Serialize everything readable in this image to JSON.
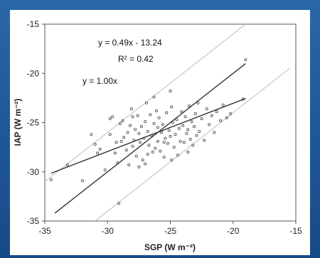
{
  "chart_data": {
    "type": "scatter",
    "title": "",
    "xlabel": "SGP (W m⁻²)",
    "ylabel": "IAP (W m⁻²)",
    "xlim": [
      -35,
      -15
    ],
    "ylim": [
      -35,
      -15
    ],
    "x_ticks": [
      -35,
      -30,
      -25,
      -20,
      -15
    ],
    "y_ticks": [
      -35,
      -30,
      -25,
      -20,
      -15
    ],
    "x_tick_labels": [
      "-35",
      "-30",
      "-25",
      "-20",
      "-15"
    ],
    "y_tick_labels": [
      "-35",
      "-30",
      "-25",
      "-20",
      "-15"
    ],
    "grid": false,
    "annotations": {
      "regression_equation": "y = 0.49x - 13.24",
      "r_squared": "R² = 0.42",
      "identity_line": "y = 1.00x"
    },
    "lines": [
      {
        "name": "y = 0.49x - 13.24",
        "slope": 0.49,
        "intercept": -13.24,
        "x_range": [
          -34.5,
          -19
        ],
        "color": "#333333"
      },
      {
        "name": "y = 1.00x",
        "slope": 1.0,
        "intercept": 0,
        "x_range": [
          -34.2,
          -19
        ],
        "color": "#333333"
      },
      {
        "slope": 1.0,
        "intercept": 4,
        "x_range": [
          -35,
          -19
        ],
        "color": "#c8c8c8"
      },
      {
        "slope": 1.0,
        "intercept": -4,
        "x_range": [
          -31,
          -15.5
        ],
        "color": "#c8c8c8"
      }
    ],
    "points": [
      [
        -34.5,
        -30.8
      ],
      [
        -33.2,
        -29.3
      ],
      [
        -31.3,
        -26.2
      ],
      [
        -31.0,
        -27.2
      ],
      [
        -30.8,
        -28.1
      ],
      [
        -30.6,
        -27.7
      ],
      [
        -29.8,
        -24.6
      ],
      [
        -29.8,
        -26.2
      ],
      [
        -29.4,
        -28.1
      ],
      [
        -29.3,
        -27.0
      ],
      [
        -29.2,
        -29.1
      ],
      [
        -29.1,
        -33.2
      ],
      [
        -29.0,
        -25.1
      ],
      [
        -28.8,
        -24.8
      ],
      [
        -28.7,
        -26.5
      ],
      [
        -28.5,
        -27.8
      ],
      [
        -28.4,
        -26.0
      ],
      [
        -28.3,
        -29.3
      ],
      [
        -28.2,
        -25.3
      ],
      [
        -28.0,
        -27.4
      ],
      [
        -28.0,
        -24.4
      ],
      [
        -27.9,
        -26.8
      ],
      [
        -27.8,
        -25.7
      ],
      [
        -27.7,
        -28.4
      ],
      [
        -27.6,
        -24.3
      ],
      [
        -27.5,
        -26.1
      ],
      [
        -27.4,
        -27.0
      ],
      [
        -27.3,
        -25.4
      ],
      [
        -27.2,
        -28.8
      ],
      [
        -27.1,
        -26.6
      ],
      [
        -27.0,
        -24.9
      ],
      [
        -27.0,
        -29.2
      ],
      [
        -26.9,
        -23.0
      ],
      [
        -26.8,
        -25.9
      ],
      [
        -26.7,
        -27.3
      ],
      [
        -26.6,
        -24.2
      ],
      [
        -26.5,
        -26.3
      ],
      [
        -26.4,
        -28.0
      ],
      [
        -26.3,
        -25.1
      ],
      [
        -26.2,
        -27.6
      ],
      [
        -26.1,
        -23.8
      ],
      [
        -26.0,
        -26.9
      ],
      [
        -26.0,
        -25.5
      ],
      [
        -25.9,
        -24.5
      ],
      [
        -25.8,
        -27.9
      ],
      [
        -25.7,
        -26.0
      ],
      [
        -25.6,
        -25.2
      ],
      [
        -25.5,
        -28.5
      ],
      [
        -25.4,
        -26.6
      ],
      [
        -25.3,
        -24.0
      ],
      [
        -25.2,
        -27.1
      ],
      [
        -25.1,
        -25.8
      ],
      [
        -25.0,
        -26.4
      ],
      [
        -24.9,
        -23.4
      ],
      [
        -24.8,
        -25.0
      ],
      [
        -24.7,
        -27.5
      ],
      [
        -24.6,
        -26.2
      ],
      [
        -24.5,
        -24.7
      ],
      [
        -24.4,
        -28.3
      ],
      [
        -24.3,
        -25.6
      ],
      [
        -24.2,
        -26.9
      ],
      [
        -24.1,
        -23.9
      ],
      [
        -24.0,
        -25.3
      ],
      [
        -23.9,
        -27.0
      ],
      [
        -23.8,
        -24.4
      ],
      [
        -23.7,
        -26.1
      ],
      [
        -23.6,
        -25.7
      ],
      [
        -23.5,
        -23.3
      ],
      [
        -23.4,
        -26.7
      ],
      [
        -23.3,
        -24.9
      ],
      [
        -23.2,
        -27.3
      ],
      [
        -23.1,
        -25.4
      ],
      [
        -23.0,
        -24.1
      ],
      [
        -22.9,
        -26.3
      ],
      [
        -22.8,
        -23.0
      ],
      [
        -22.7,
        -25.9
      ],
      [
        -22.5,
        -24.6
      ],
      [
        -22.3,
        -26.8
      ],
      [
        -22.1,
        -23.6
      ],
      [
        -21.9,
        -25.2
      ],
      [
        -21.7,
        -24.3
      ],
      [
        -21.5,
        -26.0
      ],
      [
        -21.3,
        -23.9
      ],
      [
        -21.0,
        -24.8
      ],
      [
        -20.8,
        -23.2
      ],
      [
        -20.5,
        -24.5
      ],
      [
        -20.2,
        -24.1
      ],
      [
        -19.0,
        -18.6
      ],
      [
        -19.2,
        -22.6
      ],
      [
        -25.5,
        -27.0
      ],
      [
        -26.8,
        -28.2
      ],
      [
        -27.5,
        -29.5
      ],
      [
        -28.9,
        -26.9
      ],
      [
        -24.9,
        -28.8
      ],
      [
        -23.6,
        -28.0
      ],
      [
        -30.2,
        -29.8
      ],
      [
        -32.0,
        -30.9
      ],
      [
        -29.6,
        -24.4
      ],
      [
        -28.1,
        -23.6
      ],
      [
        -26.3,
        -22.4
      ],
      [
        -25.0,
        -21.8
      ]
    ]
  }
}
